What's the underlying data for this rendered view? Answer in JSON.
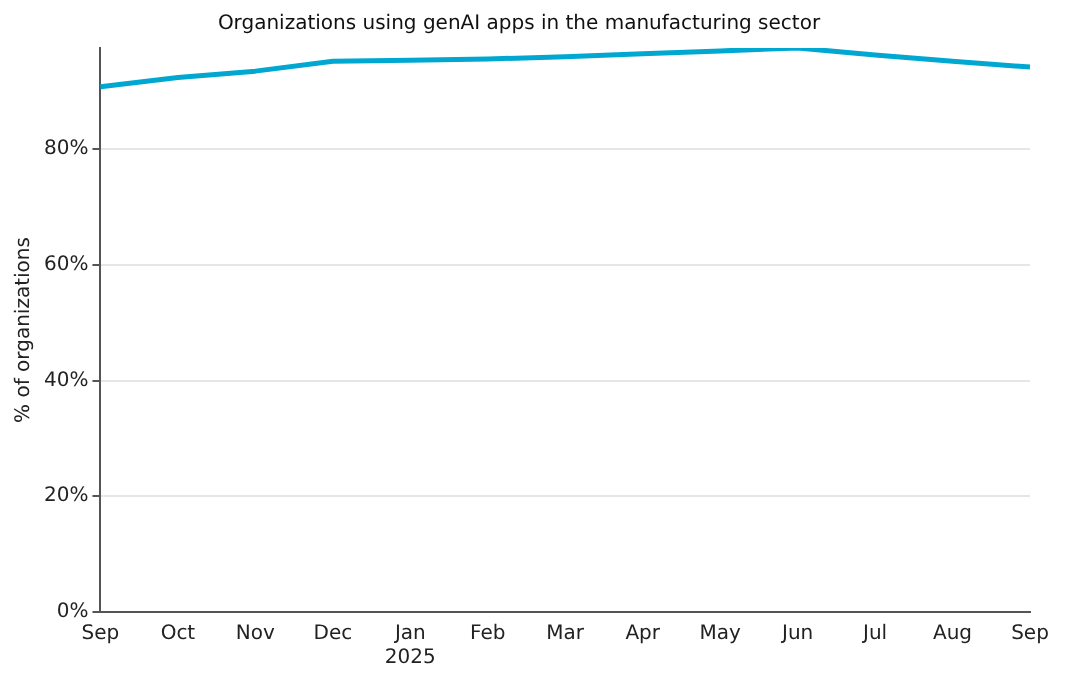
{
  "chart_data": {
    "type": "line",
    "title": "Organizations using genAI apps in the manufacturing sector",
    "ylabel": "% of organizations",
    "categories": [
      "Sep",
      "Oct",
      "Nov",
      "Dec",
      "Jan\n2025",
      "Feb",
      "Mar",
      "Apr",
      "May",
      "Jun",
      "Jul",
      "Aug",
      "Sep"
    ],
    "series": [
      {
        "color": "#00a7d0",
        "values": [
          90.8,
          92.4,
          93.5,
          95.2,
          95.4,
          95.6,
          96.0,
          96.5,
          97.0,
          97.5,
          96.3,
          95.2,
          94.2
        ]
      }
    ],
    "ylim": [
      0,
      97.5
    ],
    "yticks": [
      {
        "value": 0,
        "label": "0%"
      },
      {
        "value": 20,
        "label": "20%"
      },
      {
        "value": 40,
        "label": "40%"
      },
      {
        "value": 60,
        "label": "60%"
      },
      {
        "value": 80,
        "label": "80%"
      }
    ],
    "grid": "y",
    "legend": false,
    "marker": "none",
    "line_style": "solid"
  }
}
